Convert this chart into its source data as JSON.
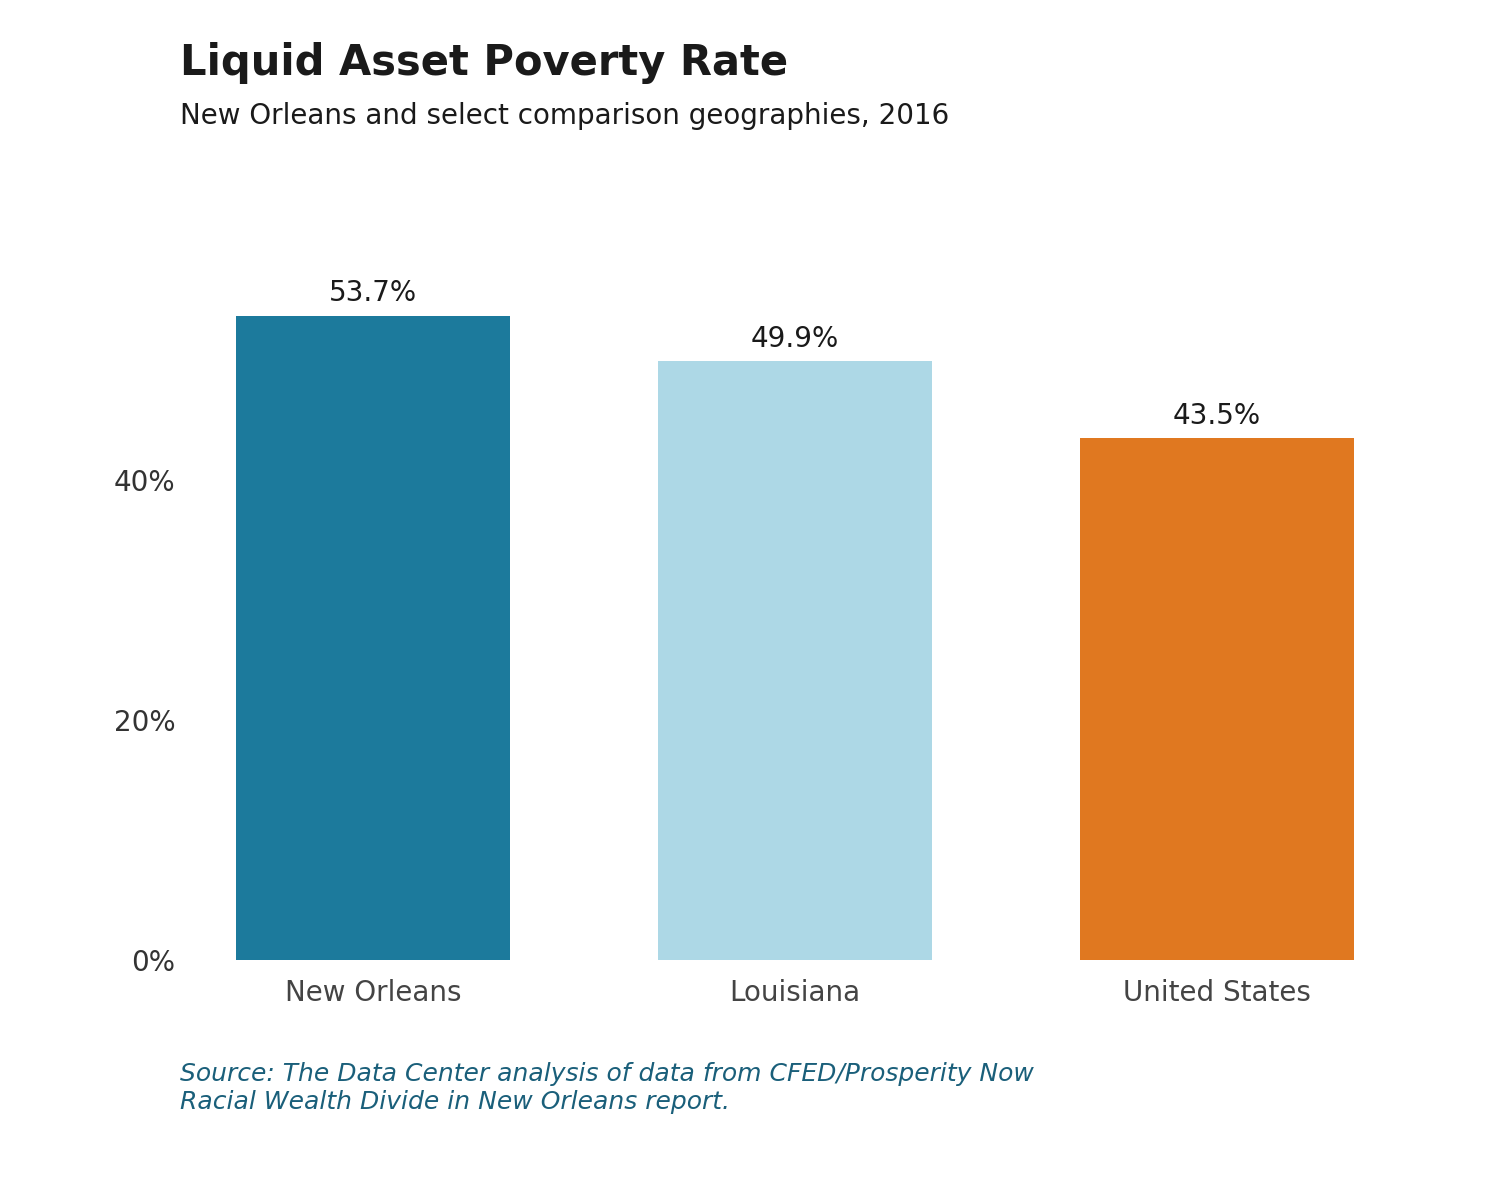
{
  "title": "Liquid Asset Poverty Rate",
  "subtitle": "New Orleans and select comparison geographies, 2016",
  "categories": [
    "New Orleans",
    "Louisiana",
    "United States"
  ],
  "values": [
    53.7,
    49.9,
    43.5
  ],
  "bar_colors": [
    "#1c7a9c",
    "#add8e6",
    "#e07820"
  ],
  "value_labels": [
    "53.7%",
    "49.9%",
    "43.5%"
  ],
  "ytick_labels": [
    "0%",
    "20%",
    "40%"
  ],
  "ytick_values": [
    0,
    20,
    40
  ],
  "ylim": [
    0,
    62
  ],
  "source_text": "Source: The Data Center analysis of data from CFED/Prosperity Now\nRacial Wealth Divide in New Orleans report.",
  "source_color": "#1a5f7a",
  "title_fontsize": 30,
  "subtitle_fontsize": 20,
  "label_fontsize": 20,
  "tick_fontsize": 20,
  "xtick_fontsize": 20,
  "source_fontsize": 18,
  "bar_width": 0.65,
  "background_color": "#ffffff",
  "title_color": "#1a1a1a",
  "subtitle_color": "#1a1a1a",
  "axis_label_color": "#333333",
  "xtick_color": "#444444"
}
